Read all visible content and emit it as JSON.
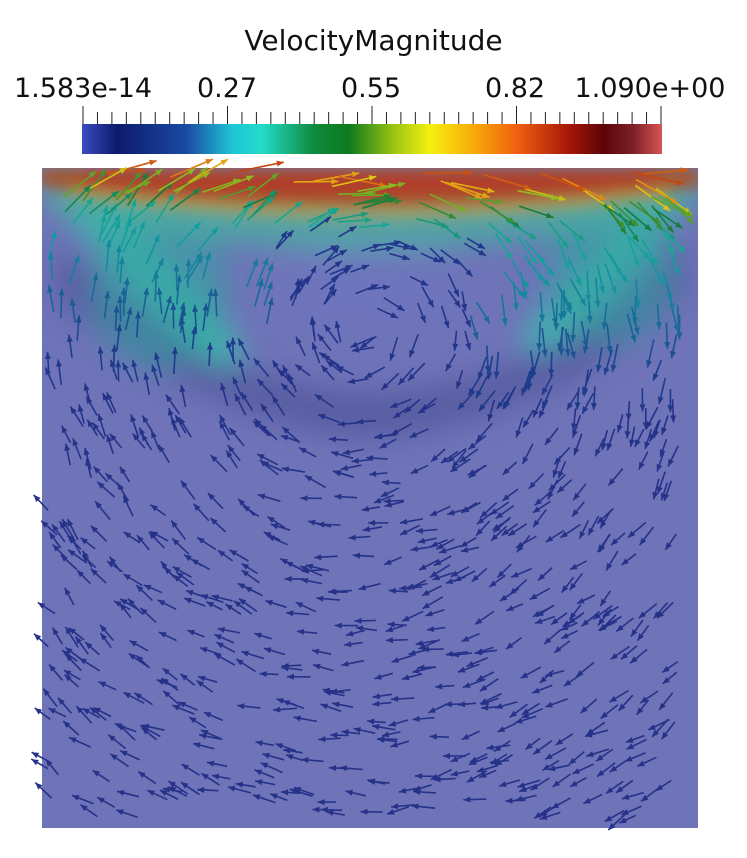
{
  "figure": {
    "colorbar_title": "VelocityMagnitude",
    "tick_labels": [
      {
        "text": "1.583e-14",
        "value": 0.0
      },
      {
        "text": "0.27",
        "value": 0.27
      },
      {
        "text": "0.55",
        "value": 0.55
      },
      {
        "text": "0.82",
        "value": 0.82
      },
      {
        "text": "1.090e+00",
        "value": 1.09
      }
    ],
    "range": [
      1.583e-14,
      1.09
    ],
    "colormap": [
      "#3b4cc0",
      "#0c1a6c",
      "#1b4aa3",
      "#1ec5d6",
      "#22dcc8",
      "#0f8a3c",
      "#0e7a1e",
      "#9fc712",
      "#f4f00e",
      "#f7a50a",
      "#f06010",
      "#a51708",
      "#5c0508",
      "#7d1f28",
      "#d75454"
    ],
    "background_low_color": "#6f73b8",
    "arrow_low_color": "#2a2d86"
  }
}
